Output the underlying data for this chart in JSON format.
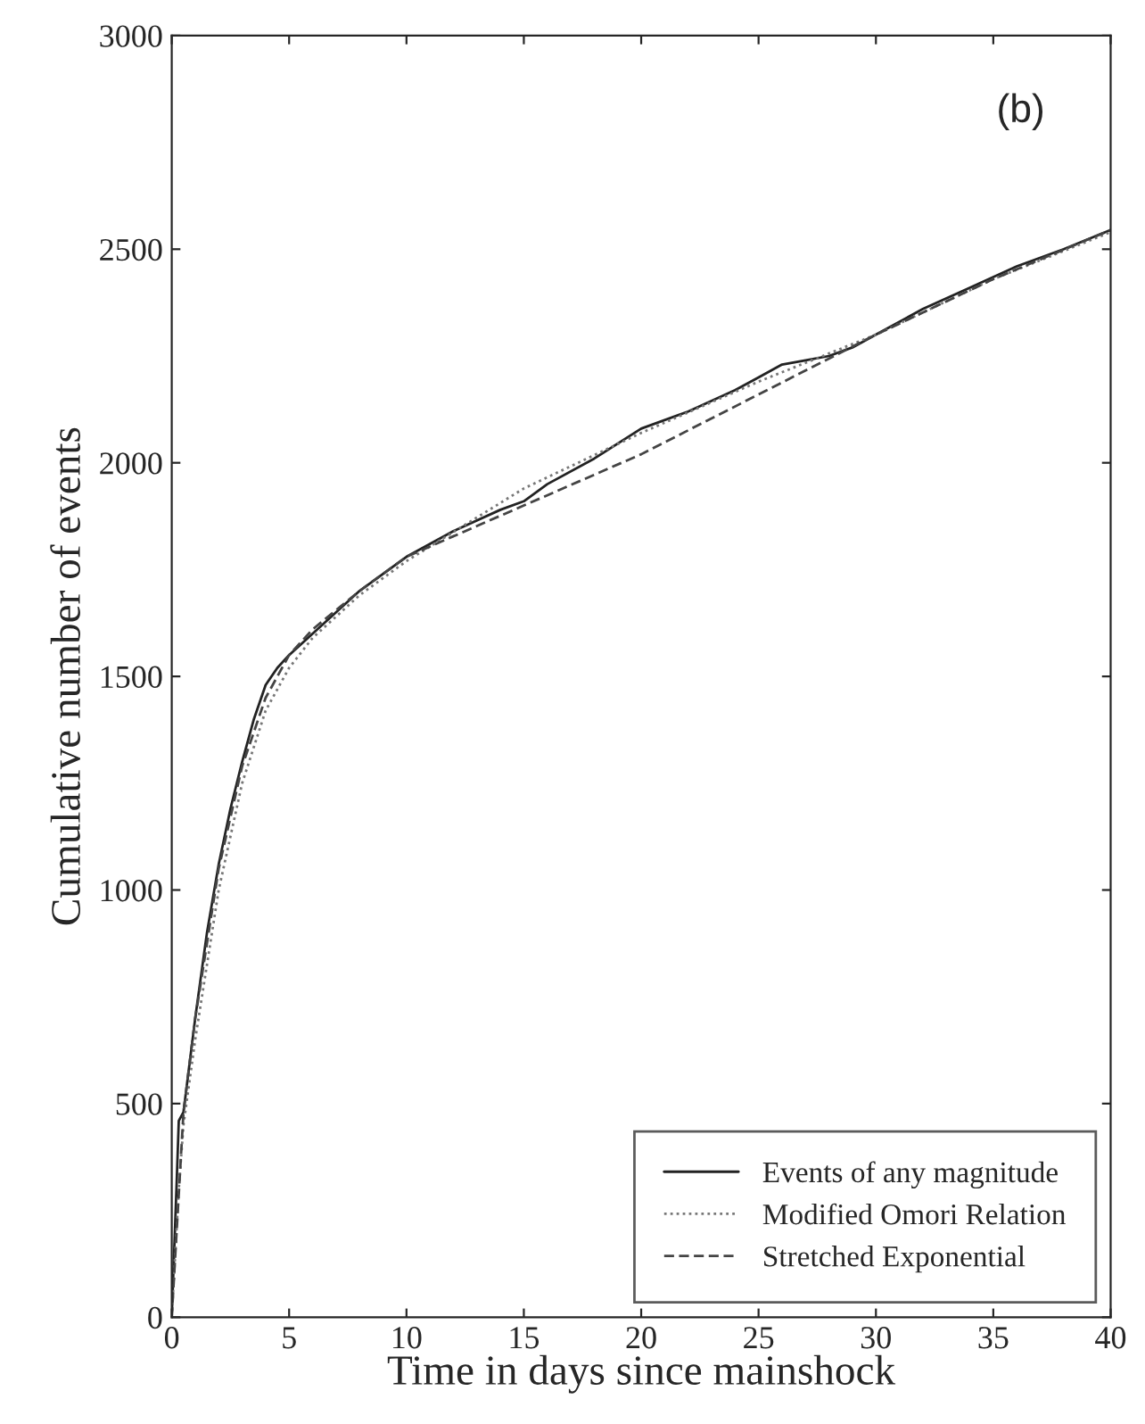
{
  "chart_data": {
    "type": "line",
    "xlabel": "Time in days since mainshock",
    "ylabel": "Cumulative number of events",
    "annotations": [
      "(b)"
    ],
    "xlim": [
      0,
      40
    ],
    "xticks": [
      0,
      5,
      10,
      15,
      20,
      25,
      30,
      35,
      40
    ],
    "ylim": [
      0,
      3000
    ],
    "yticks": [
      0,
      500,
      1000,
      1500,
      2000,
      2500,
      3000
    ],
    "grid": false,
    "legend": "bottom right",
    "series": [
      {
        "name": "Events of any magnitude",
        "color": "#222222",
        "line_style": "solid",
        "x": [
          0,
          0.2,
          0.3,
          0.5,
          1,
          1.5,
          2,
          2.5,
          3,
          3.5,
          4,
          4.5,
          5,
          6,
          7,
          8,
          10,
          12,
          14,
          15,
          16,
          18,
          20,
          22,
          24,
          25,
          26,
          27,
          28,
          29,
          30,
          32,
          34,
          36,
          38,
          40
        ],
        "values": [
          0,
          300,
          460,
          480,
          700,
          900,
          1060,
          1190,
          1300,
          1400,
          1480,
          1520,
          1550,
          1600,
          1650,
          1700,
          1780,
          1840,
          1890,
          1910,
          1950,
          2010,
          2080,
          2120,
          2170,
          2200,
          2230,
          2240,
          2250,
          2270,
          2300,
          2360,
          2410,
          2460,
          2500,
          2545
        ]
      },
      {
        "name": "Modified Omori Relation",
        "color": "#777777",
        "line_style": "dotted",
        "x": [
          0,
          0.3,
          0.5,
          1,
          2,
          3,
          4,
          5,
          6,
          8,
          10,
          15,
          20,
          25,
          30,
          35,
          40
        ],
        "values": [
          0,
          300,
          450,
          650,
          1000,
          1250,
          1420,
          1520,
          1590,
          1690,
          1770,
          1940,
          2070,
          2190,
          2300,
          2430,
          2540
        ]
      },
      {
        "name": "Stretched Exponential",
        "color": "#444444",
        "line_style": "dashed",
        "x": [
          0,
          0.5,
          1,
          2,
          3,
          4,
          5,
          6,
          8,
          10,
          15,
          20,
          25,
          30,
          35,
          40
        ],
        "values": [
          0,
          480,
          700,
          1050,
          1290,
          1450,
          1550,
          1610,
          1700,
          1780,
          1900,
          2020,
          2160,
          2300,
          2430,
          2545
        ]
      }
    ]
  }
}
